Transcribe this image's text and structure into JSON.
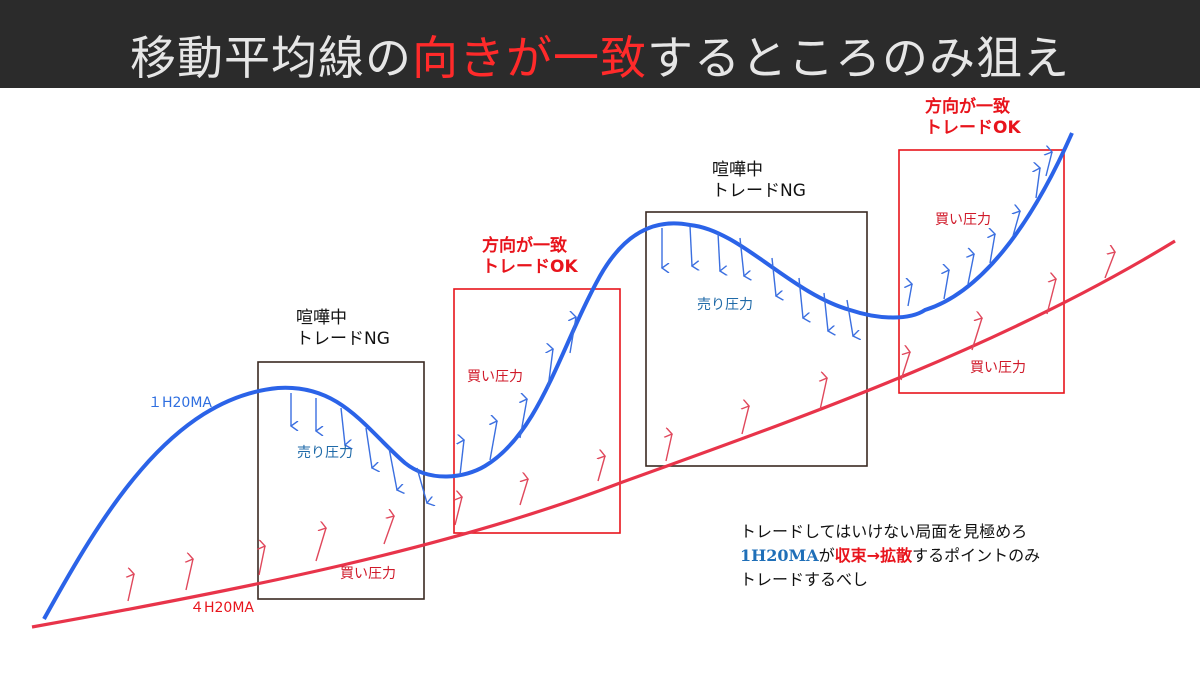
{
  "title": {
    "part1": "移動平均線の",
    "highlight": "向きが一致",
    "part2": "するところのみ狙え"
  },
  "labels": {
    "ma_1h": "１H20MA",
    "ma_4h": "４H20MA",
    "zone1_line1": "喧嘩中",
    "zone1_line2": "トレードNG",
    "zone2_line1": "方向が一致",
    "zone2_line2": "トレードOK",
    "zone3_line1": "喧嘩中",
    "zone3_line2": "トレードNG",
    "zone4_line1": "方向が一致",
    "zone4_line2": "トレードOK",
    "sell_pressure_1": "売り圧力",
    "sell_pressure_2": "売り圧力",
    "buy_pressure_1": "買い圧力",
    "buy_pressure_2": "買い圧力",
    "buy_pressure_3": "買い圧力",
    "buy_pressure_4": "買い圧力"
  },
  "note": {
    "line1": "トレードしてはいけない局面を見極めろ",
    "line2_ma": "1H20MA",
    "line2_ga": "が",
    "line2_red": "収束→拡散",
    "line2_rest": "するポイントのみ",
    "line3": "トレードするべし"
  },
  "colors": {
    "blue_line": "#2b63e8",
    "red_line": "#e8344a",
    "box_dark": "#3a2a22",
    "box_red": "#e8141c",
    "title_highlight": "#ff2a2a"
  }
}
